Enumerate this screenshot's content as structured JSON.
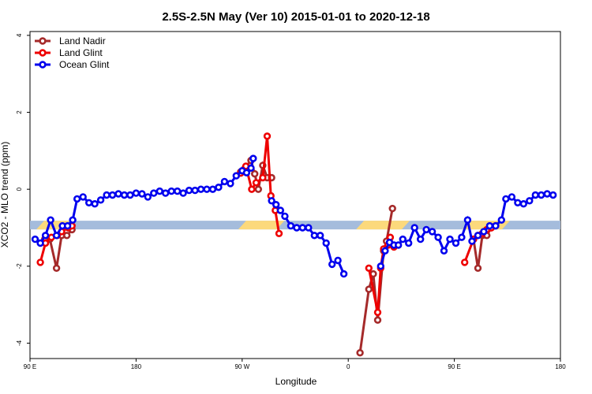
{
  "chart_data": {
    "type": "line",
    "title": "2.5S-2.5N May (Ver 10)   2015-01-01 to 2020-12-18",
    "xlabel": "Longitude",
    "ylabel": "XCO2 - MLO trend (ppm)",
    "xlim": [
      90,
      450
    ],
    "ylim": [
      -4.4,
      4.1
    ],
    "xticks": [
      {
        "value": 90,
        "label": "90 E"
      },
      {
        "value": 162,
        "label": "180"
      },
      {
        "value": 234,
        "label": "90 W"
      },
      {
        "value": 306,
        "label": "0"
      },
      {
        "value": 378,
        "label": "90 E"
      },
      {
        "value": 450,
        "label": "180"
      }
    ],
    "yticks": [
      {
        "value": -4,
        "label": "-4"
      },
      {
        "value": -2,
        "label": "-2"
      },
      {
        "value": 0,
        "label": "0"
      },
      {
        "value": 2,
        "label": "2"
      },
      {
        "value": 4,
        "label": "4"
      }
    ],
    "land_band": {
      "y": -0.93,
      "ocean_color": "#a5bcdc",
      "land_color": "#fcd97c",
      "land_segments": [
        [
          97,
          114
        ],
        [
          234,
          260
        ],
        [
          314,
          345
        ],
        [
          386,
          413
        ]
      ]
    },
    "legend": [
      {
        "name": "Land Nadir",
        "color": "#a52a2a"
      },
      {
        "name": "Land Glint",
        "color": "#ee0000"
      },
      {
        "name": "Ocean Glint",
        "color": "#0000ee"
      }
    ],
    "series": [
      {
        "name": "Land Nadir",
        "color": "#a52a2a",
        "segments": [
          [
            [
              100,
              -1.3
            ],
            [
              103.5,
              -1.3
            ],
            [
              108,
              -2.05
            ],
            [
              111.5,
              -1.2
            ],
            [
              115,
              -1.2
            ],
            [
              118.5,
              -1.05
            ]
          ],
          [
            [
              233,
              0.45
            ],
            [
              236,
              0.55
            ],
            [
              240,
              0.75
            ],
            [
              242.5,
              0.4
            ],
            [
              245,
              0.0
            ],
            [
              248,
              0.62
            ],
            [
              251,
              0.3
            ],
            [
              254,
              0.3
            ]
          ],
          [
            [
              314,
              -4.25
            ],
            [
              320,
              -2.6
            ],
            [
              323,
              -2.2
            ],
            [
              326,
              -3.4
            ],
            [
              330,
              -1.6
            ],
            [
              332,
              -1.35
            ],
            [
              336,
              -0.5
            ]
          ],
          [
            [
              391,
              -1.3
            ],
            [
              394,
              -2.05
            ],
            [
              397,
              -1.2
            ],
            [
              400,
              -1.2
            ],
            [
              403,
              -1.0
            ]
          ]
        ]
      },
      {
        "name": "Land Glint",
        "color": "#ee0000",
        "segments": [
          [
            [
              97,
              -1.9
            ],
            [
              100.5,
              -1.4
            ],
            [
              104.5,
              -1.25
            ],
            [
              108.5,
              -1.2
            ],
            [
              111.5,
              -1.1
            ],
            [
              116,
              -1.0
            ],
            [
              118.5,
              -0.95
            ]
          ],
          [
            [
              233,
              0.42
            ],
            [
              236.5,
              0.6
            ],
            [
              240.5,
              0.0
            ],
            [
              243.5,
              0.17
            ],
            [
              248,
              0.3
            ],
            [
              251,
              1.38
            ],
            [
              253.5,
              -0.17
            ],
            [
              256.5,
              -0.55
            ],
            [
              259,
              -1.15
            ]
          ],
          [
            [
              320,
              -2.05
            ],
            [
              326,
              -3.2
            ],
            [
              328,
              -2.05
            ],
            [
              330,
              -1.55
            ],
            [
              333,
              -1.45
            ],
            [
              334.5,
              -1.25
            ],
            [
              337,
              -1.5
            ]
          ],
          [
            [
              385,
              -1.9
            ],
            [
              391,
              -1.3
            ],
            [
              394,
              -1.2
            ],
            [
              397,
              -1.15
            ],
            [
              400,
              -1.05
            ],
            [
              403,
              -1.0
            ],
            [
              406,
              -0.95
            ]
          ]
        ]
      },
      {
        "name": "Ocean Glint",
        "color": "#0000ee",
        "segments": [
          [
            [
              93.5,
              -1.3
            ],
            [
              97,
              -1.4
            ],
            [
              100.5,
              -1.2
            ],
            [
              104,
              -0.8
            ],
            [
              108,
              -1.2
            ],
            [
              112,
              -0.95
            ],
            [
              115.5,
              -0.95
            ],
            [
              119,
              -0.8
            ],
            [
              122,
              -0.25
            ],
            [
              126,
              -0.2
            ],
            [
              130,
              -0.35
            ],
            [
              134,
              -0.38
            ],
            [
              138,
              -0.28
            ],
            [
              142,
              -0.15
            ],
            [
              146,
              -0.15
            ],
            [
              150,
              -0.12
            ],
            [
              154,
              -0.15
            ],
            [
              158,
              -0.15
            ],
            [
              162,
              -0.1
            ],
            [
              166,
              -0.12
            ],
            [
              170,
              -0.2
            ],
            [
              174,
              -0.1
            ],
            [
              178,
              -0.05
            ],
            [
              182,
              -0.1
            ],
            [
              186,
              -0.05
            ],
            [
              190,
              -0.05
            ],
            [
              194,
              -0.1
            ],
            [
              198,
              -0.03
            ],
            [
              202,
              -0.03
            ],
            [
              206,
              0.0
            ],
            [
              210,
              0.0
            ],
            [
              214,
              0.0
            ],
            [
              218,
              0.05
            ],
            [
              222,
              0.2
            ],
            [
              226,
              0.15
            ],
            [
              230,
              0.35
            ],
            [
              234,
              0.48
            ],
            [
              237,
              0.43
            ],
            [
              240,
              0.55
            ],
            [
              241.5,
              0.8
            ]
          ],
          [
            [
              254,
              -0.3
            ],
            [
              257,
              -0.4
            ],
            [
              260,
              -0.55
            ],
            [
              263,
              -0.7
            ],
            [
              267,
              -0.95
            ],
            [
              271,
              -1.0
            ],
            [
              275,
              -1.0
            ],
            [
              279,
              -1.0
            ],
            [
              283,
              -1.2
            ],
            [
              287,
              -1.2
            ],
            [
              291,
              -1.4
            ],
            [
              295,
              -1.95
            ],
            [
              299,
              -1.85
            ],
            [
              303,
              -2.2
            ]
          ],
          [
            [
              328,
              -2.0
            ],
            [
              331,
              -1.6
            ],
            [
              334,
              -1.38
            ],
            [
              337,
              -1.45
            ],
            [
              340,
              -1.45
            ],
            [
              343,
              -1.3
            ],
            [
              347,
              -1.4
            ],
            [
              351,
              -1.0
            ],
            [
              355,
              -1.3
            ],
            [
              359,
              -1.05
            ],
            [
              363,
              -1.1
            ],
            [
              367,
              -1.25
            ],
            [
              371,
              -1.6
            ],
            [
              375,
              -1.3
            ],
            [
              379,
              -1.4
            ],
            [
              383,
              -1.25
            ],
            [
              387,
              -0.8
            ],
            [
              390,
              -1.35
            ],
            [
              394,
              -1.2
            ],
            [
              398,
              -1.1
            ],
            [
              402,
              -0.95
            ],
            [
              406,
              -0.95
            ],
            [
              410,
              -0.8
            ],
            [
              413,
              -0.25
            ],
            [
              417,
              -0.2
            ],
            [
              421,
              -0.35
            ],
            [
              425,
              -0.38
            ],
            [
              429,
              -0.3
            ],
            [
              433,
              -0.15
            ],
            [
              437,
              -0.15
            ],
            [
              441,
              -0.12
            ],
            [
              445,
              -0.15
            ]
          ]
        ]
      }
    ]
  }
}
